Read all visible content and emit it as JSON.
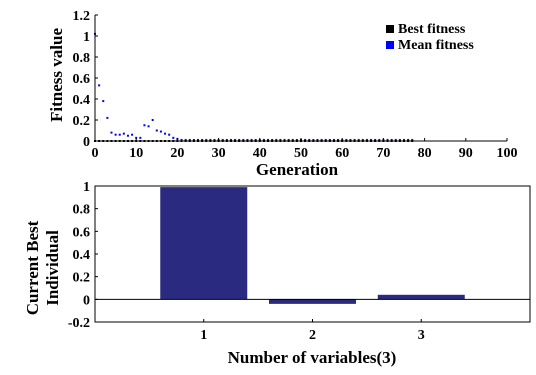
{
  "chart_data": [
    {
      "type": "scatter",
      "title": "",
      "xlabel": "Generation",
      "ylabel": "Fitness value",
      "xlim": [
        0,
        100
      ],
      "ylim": [
        0,
        1.2
      ],
      "xticks": [
        0,
        10,
        20,
        30,
        40,
        50,
        60,
        70,
        80,
        90,
        100
      ],
      "yticks": [
        0,
        0.2,
        0.4,
        0.6,
        0.8,
        1,
        1.2
      ],
      "x_tick_labels": [
        "0",
        "10",
        "20",
        "30",
        "40",
        "50",
        "60",
        "70",
        "80",
        "90",
        "100"
      ],
      "y_tick_labels": [
        "0",
        "0.2",
        "0.4",
        "0.6",
        "0.8",
        "1",
        "1.2"
      ],
      "grid": false,
      "legend_position": "top-right",
      "series": [
        {
          "name": "Best fitness",
          "color": "#000000",
          "x": [
            0,
            1,
            2,
            3,
            4,
            5,
            6,
            7,
            8,
            9,
            10,
            11,
            12,
            13,
            14,
            15,
            16,
            17,
            18,
            19,
            20,
            21,
            22,
            23,
            24,
            25,
            26,
            27,
            28,
            29,
            30,
            31,
            32,
            33,
            34,
            35,
            36,
            37,
            38,
            39,
            40,
            41,
            42,
            43,
            44,
            45,
            46,
            47,
            48,
            49,
            50,
            51,
            52,
            53,
            54,
            55,
            56,
            57,
            58,
            59,
            60,
            61,
            62,
            63,
            64,
            65,
            66,
            67,
            68,
            69,
            70,
            71,
            72,
            73,
            74,
            75,
            76,
            77
          ],
          "y": [
            0,
            0,
            0,
            0,
            0,
            0,
            0,
            0,
            0,
            0,
            0,
            0,
            0,
            0,
            0,
            0,
            0,
            0,
            0,
            0,
            0,
            0,
            0,
            0,
            0,
            0,
            0,
            0,
            0,
            0,
            0,
            0,
            0,
            0,
            0,
            0,
            0,
            0,
            0,
            0,
            0,
            0,
            0,
            0,
            0,
            0,
            0,
            0,
            0,
            0,
            0,
            0,
            0,
            0,
            0,
            0,
            0,
            0,
            0,
            0,
            0,
            0,
            0,
            0,
            0,
            0,
            0,
            0,
            0,
            0,
            0,
            0,
            0,
            0,
            0,
            0,
            0,
            0
          ]
        },
        {
          "name": "Mean fitness",
          "color": "#0000ff",
          "x": [
            0,
            1,
            2,
            3,
            4,
            5,
            6,
            7,
            8,
            9,
            10,
            11,
            12,
            13,
            14,
            15,
            16,
            17,
            18,
            19,
            20,
            21,
            22,
            23,
            24,
            25,
            26,
            27,
            28,
            29,
            30,
            31,
            32,
            33,
            34,
            35,
            36,
            37,
            38,
            39,
            40,
            41,
            42,
            43,
            44,
            45,
            46,
            47,
            48,
            49,
            50,
            51,
            52,
            53,
            54,
            55,
            56,
            57,
            58,
            59,
            60,
            61,
            62,
            63,
            64,
            65,
            66,
            67,
            68,
            69,
            70,
            71,
            72,
            73,
            74,
            75,
            76,
            77
          ],
          "y": [
            1.02,
            0.53,
            0.38,
            0.22,
            0.08,
            0.06,
            0.06,
            0.07,
            0.05,
            0.06,
            0.03,
            0.03,
            0.15,
            0.14,
            0.2,
            0.1,
            0.09,
            0.07,
            0.06,
            0.03,
            0.02,
            0.01,
            0.01,
            0.01,
            0.01,
            0.01,
            0.01,
            0.01,
            0.01,
            0.01,
            0.01,
            0.01,
            0.01,
            0.01,
            0.01,
            0.01,
            0.01,
            0.01,
            0.01,
            0.01,
            0.01,
            0.01,
            0.01,
            0.01,
            0.01,
            0.01,
            0.01,
            0.01,
            0.01,
            0.01,
            0.01,
            0.01,
            0.01,
            0.01,
            0.01,
            0.01,
            0.01,
            0.01,
            0.01,
            0.01,
            0.01,
            0.01,
            0.01,
            0.01,
            0.01,
            0.01,
            0.01,
            0.01,
            0.01,
            0.01,
            0.01,
            0.01,
            0.01,
            0.01,
            0.01,
            0.01,
            0.01,
            0.01
          ]
        }
      ]
    },
    {
      "type": "bar",
      "title": "",
      "xlabel": "Number of variables(3)",
      "ylabel": "Current Best Individual",
      "ylabel_lines": [
        "Current Best",
        "Individual"
      ],
      "categories": [
        "1",
        "2",
        "3"
      ],
      "values": [
        0.99,
        -0.04,
        0.04
      ],
      "xlim": [
        0,
        4
      ],
      "ylim": [
        -0.2,
        1
      ],
      "yticks": [
        -0.2,
        0,
        0.2,
        0.4,
        0.6,
        0.8,
        1
      ],
      "y_tick_labels": [
        "-0.2",
        "0",
        "0.2",
        "0.4",
        "0.6",
        "0.8",
        "1"
      ],
      "bar_color": "#2a2a80",
      "grid": false
    }
  ]
}
